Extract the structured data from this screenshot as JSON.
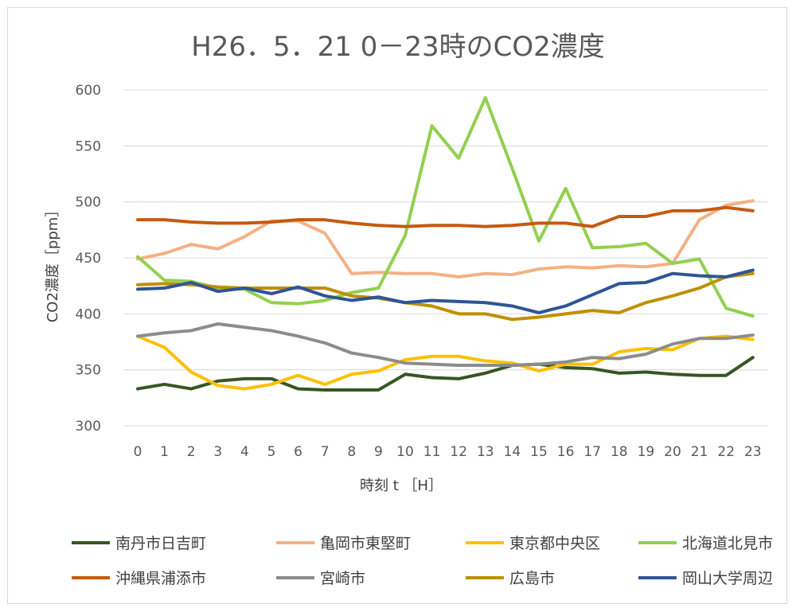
{
  "chart_data": {
    "type": "line",
    "title": "H26．5．21 0－23時のCO2濃度",
    "xlabel": "時刻 t ［H］",
    "ylabel": "CO2濃度［ppm］",
    "x": [
      0,
      1,
      2,
      3,
      4,
      5,
      6,
      7,
      8,
      9,
      10,
      11,
      12,
      13,
      14,
      15,
      16,
      17,
      18,
      19,
      20,
      21,
      22,
      23
    ],
    "xticks": [
      "0",
      "1",
      "2",
      "3",
      "4",
      "5",
      "6",
      "7",
      "8",
      "9",
      "10",
      "11",
      "12",
      "13",
      "14",
      "15",
      "16",
      "17",
      "18",
      "19",
      "20",
      "21",
      "22",
      "23"
    ],
    "ylim": [
      300,
      600
    ],
    "yticks": [
      "300",
      "350",
      "400",
      "450",
      "500",
      "550",
      "600"
    ],
    "grid": true,
    "legend_position": "bottom",
    "series": [
      {
        "name": "南丹市日吉町",
        "color": "#375623",
        "values": [
          333,
          337,
          333,
          340,
          342,
          342,
          333,
          332,
          332,
          332,
          346,
          343,
          342,
          347,
          354,
          355,
          352,
          351,
          347,
          348,
          346,
          345,
          345,
          361
        ]
      },
      {
        "name": "亀岡市東堅町",
        "color": "#f4b183",
        "values": [
          449,
          454,
          462,
          458,
          469,
          483,
          483,
          472,
          436,
          437,
          436,
          436,
          433,
          436,
          435,
          440,
          442,
          441,
          443,
          442,
          445,
          484,
          497,
          501
        ]
      },
      {
        "name": "東京都中央区",
        "color": "#ffc000",
        "values": [
          380,
          370,
          348,
          336,
          333,
          337,
          345,
          337,
          346,
          349,
          359,
          362,
          362,
          358,
          356,
          349,
          355,
          355,
          366,
          369,
          368,
          378,
          380,
          377
        ]
      },
      {
        "name": "北海道北見市",
        "color": "#92d050",
        "values": [
          451,
          430,
          429,
          423,
          422,
          410,
          409,
          412,
          419,
          423,
          470,
          568,
          539,
          593,
          530,
          465,
          512,
          459,
          460,
          463,
          445,
          449,
          405,
          398
        ]
      },
      {
        "name": "沖縄県浦添市",
        "color": "#c55a11",
        "values": [
          484,
          484,
          482,
          481,
          481,
          482,
          484,
          484,
          481,
          479,
          478,
          479,
          479,
          478,
          479,
          481,
          481,
          478,
          487,
          487,
          492,
          492,
          495,
          492
        ]
      },
      {
        "name": "宮崎市",
        "color": "#8c8c8c",
        "values": [
          380,
          383,
          385,
          391,
          388,
          385,
          380,
          374,
          365,
          361,
          356,
          355,
          354,
          354,
          354,
          355,
          357,
          361,
          360,
          364,
          373,
          378,
          378,
          381
        ]
      },
      {
        "name": "広島市",
        "color": "#bf9000",
        "values": [
          426,
          427,
          426,
          424,
          423,
          423,
          423,
          423,
          416,
          414,
          410,
          407,
          400,
          400,
          395,
          397,
          400,
          403,
          401,
          410,
          416,
          423,
          433,
          436
        ]
      },
      {
        "name": "岡山大学周辺",
        "color": "#2f5597",
        "values": [
          422,
          423,
          428,
          420,
          423,
          418,
          424,
          416,
          412,
          415,
          410,
          412,
          411,
          410,
          407,
          401,
          407,
          417,
          427,
          428,
          436,
          434,
          433,
          439
        ]
      }
    ]
  }
}
